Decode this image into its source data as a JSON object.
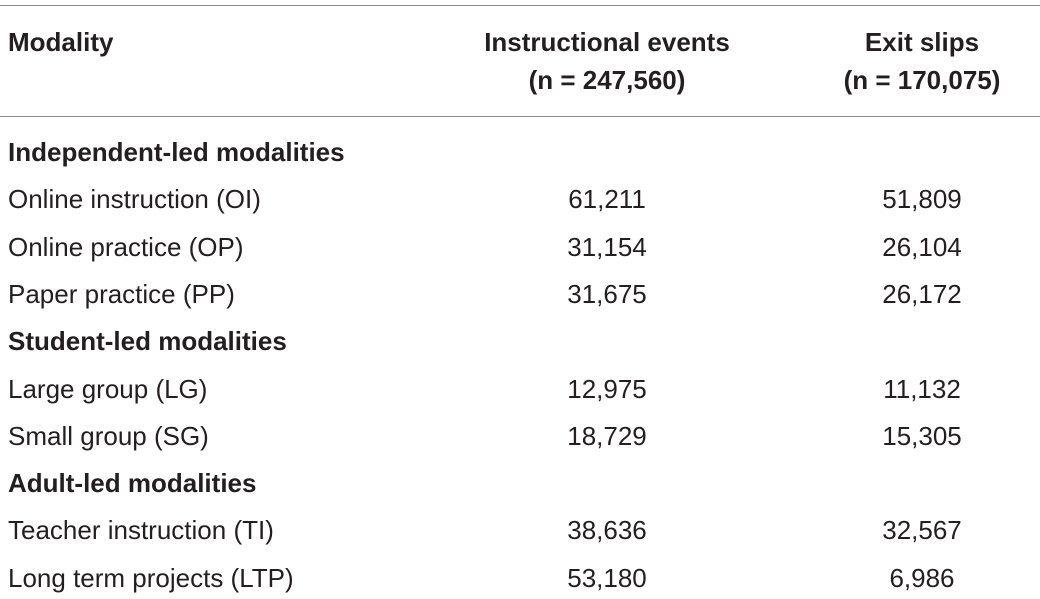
{
  "table": {
    "columns": [
      {
        "label": "Modality"
      },
      {
        "label": "Instructional events",
        "n": "(n = 247,560)"
      },
      {
        "label": "Exit slips",
        "n": "(n = 170,075)"
      }
    ],
    "sections": [
      {
        "title": "Independent-led modalities",
        "rows": [
          [
            "Online instruction (OI)",
            "61,211",
            "51,809"
          ],
          [
            "Online practice (OP)",
            "31,154",
            "26,104"
          ],
          [
            "Paper practice (PP)",
            "31,675",
            "26,172"
          ]
        ]
      },
      {
        "title": "Student-led modalities",
        "rows": [
          [
            "Large group (LG)",
            "12,975",
            "11,132"
          ],
          [
            "Small group (SG)",
            "18,729",
            "15,305"
          ]
        ]
      },
      {
        "title": "Adult-led modalities",
        "rows": [
          [
            "Teacher instruction (TI)",
            "38,636",
            "32,567"
          ],
          [
            "Long term projects (LTP)",
            "53,180",
            "6,986"
          ]
        ]
      }
    ]
  }
}
